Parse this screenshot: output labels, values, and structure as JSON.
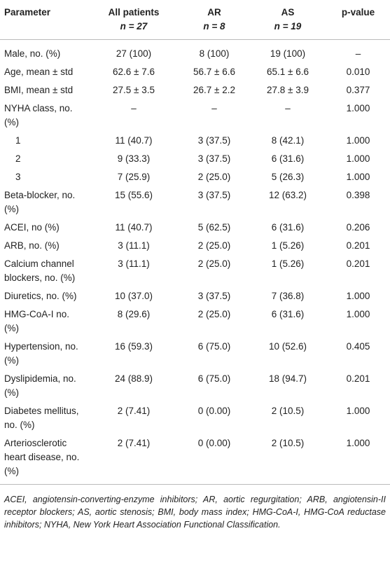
{
  "table": {
    "header": [
      {
        "label": "Parameter"
      },
      {
        "label": "All patients",
        "n": "n = 27"
      },
      {
        "label": "AR",
        "n": "n = 8"
      },
      {
        "label": "AS",
        "n": "n = 19"
      },
      {
        "label": "p-value"
      }
    ],
    "rows": [
      [
        "Male, no. (%)",
        "27 (100)",
        "8 (100)",
        "19 (100)",
        "–"
      ],
      [
        "Age, mean ± std",
        "62.6 ± 7.6",
        "56.7 ± 6.6",
        "65.1 ± 6.6",
        "0.010"
      ],
      [
        "BMI, mean ± std",
        "27.5 ± 3.5",
        "26.7 ± 2.2",
        "27.8 ± 3.9",
        "0.377"
      ],
      [
        "NYHA class, no. (%)",
        "–",
        "–",
        "–",
        "1.000"
      ],
      [
        "1",
        "11 (40.7)",
        "3 (37.5)",
        "8 (42.1)",
        "1.000"
      ],
      [
        "2",
        "9 (33.3)",
        "3 (37.5)",
        "6 (31.6)",
        "1.000"
      ],
      [
        "3",
        "7 (25.9)",
        "2 (25.0)",
        "5 (26.3)",
        "1.000"
      ],
      [
        "Beta-blocker, no. (%)",
        "15 (55.6)",
        "3 (37.5)",
        "12 (63.2)",
        "0.398"
      ],
      [
        "ACEI, no (%)",
        "11 (40.7)",
        "5 (62.5)",
        "6 (31.6)",
        "0.206"
      ],
      [
        "ARB, no. (%)",
        "3 (11.1)",
        "2 (25.0)",
        "1 (5.26)",
        "0.201"
      ],
      [
        "Calcium channel blockers, no. (%)",
        "3 (11.1)",
        "2 (25.0)",
        "1 (5.26)",
        "0.201"
      ],
      [
        "Diuretics, no. (%)",
        "10 (37.0)",
        "3 (37.5)",
        "7 (36.8)",
        "1.000"
      ],
      [
        "HMG-CoA-I no. (%)",
        "8 (29.6)",
        "2 (25.0)",
        "6 (31.6)",
        "1.000"
      ],
      [
        "Hypertension, no. (%)",
        "16 (59.3)",
        "6 (75.0)",
        "10 (52.6)",
        "0.405"
      ],
      [
        "Dyslipidemia, no. (%)",
        "24 (88.9)",
        "6 (75.0)",
        "18 (94.7)",
        "0.201"
      ],
      [
        "Diabetes mellitus, no. (%)",
        "2 (7.41)",
        "0 (0.00)",
        "2 (10.5)",
        "1.000"
      ],
      [
        "Arteriosclerotic heart disease, no. (%)",
        "2 (7.41)",
        "0 (0.00)",
        "2 (10.5)",
        "1.000"
      ]
    ],
    "indented_rows": [
      4,
      5,
      6
    ],
    "footnote": "ACEI, angiotensin-converting-enzyme inhibitors; AR, aortic regurgitation; ARB, angiotensin-II receptor blockers; AS, aortic stenosis; BMI, body mass index; HMG-CoA-I, HMG-CoA reductase inhibitors; NYHA, New York Heart Association Functional Classification."
  }
}
